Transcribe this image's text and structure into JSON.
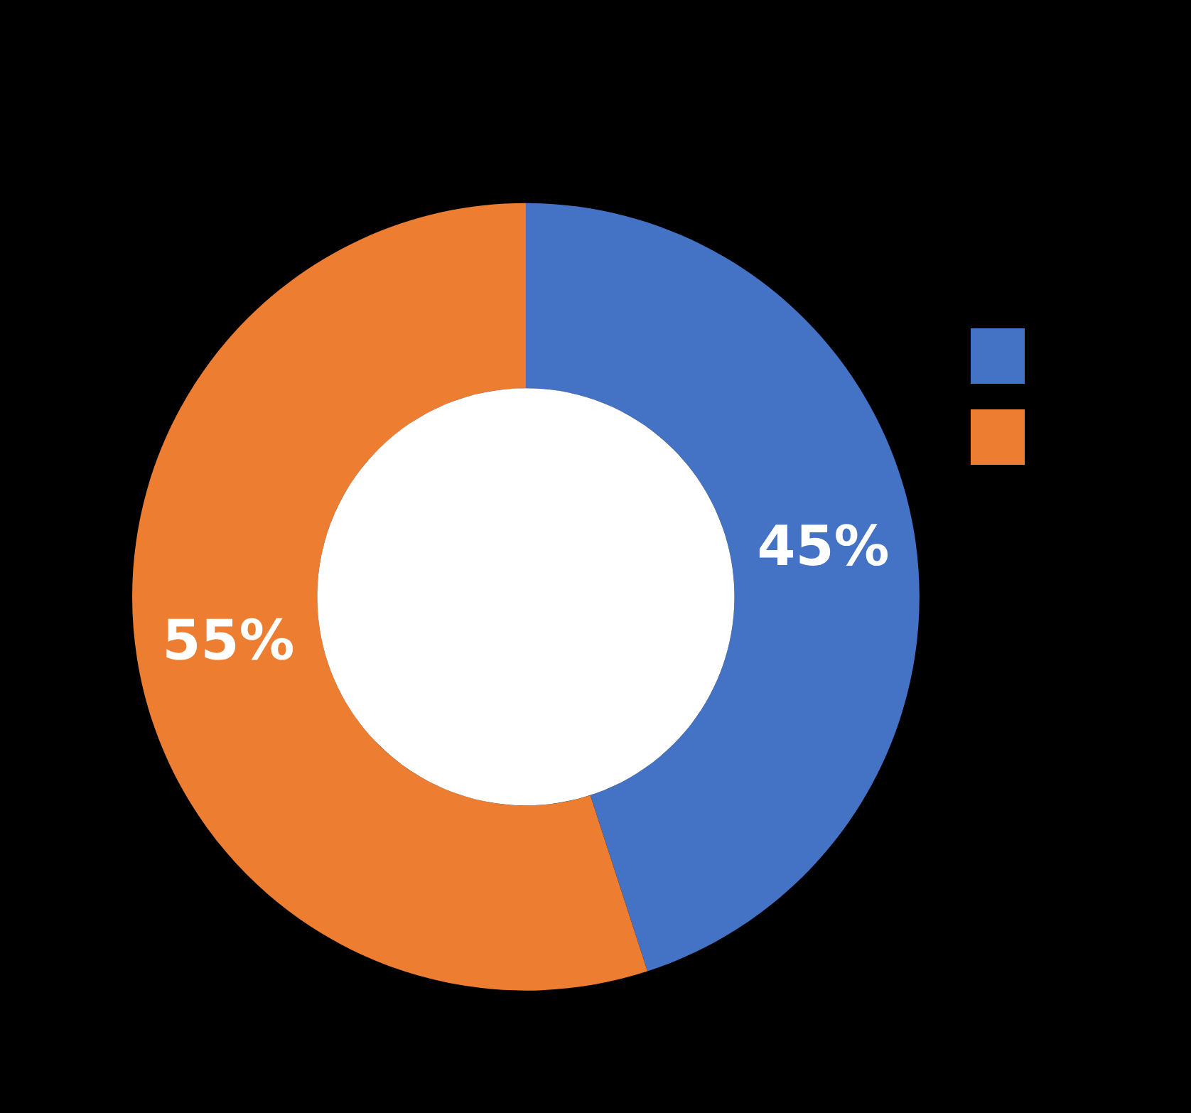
{
  "chart_data": {
    "type": "donut",
    "categories": [
      null,
      null
    ],
    "values": [
      45,
      55
    ],
    "colors": [
      "#4472c4",
      "#ed7d31"
    ],
    "value_labels": [
      "45%",
      "55%"
    ]
  }
}
